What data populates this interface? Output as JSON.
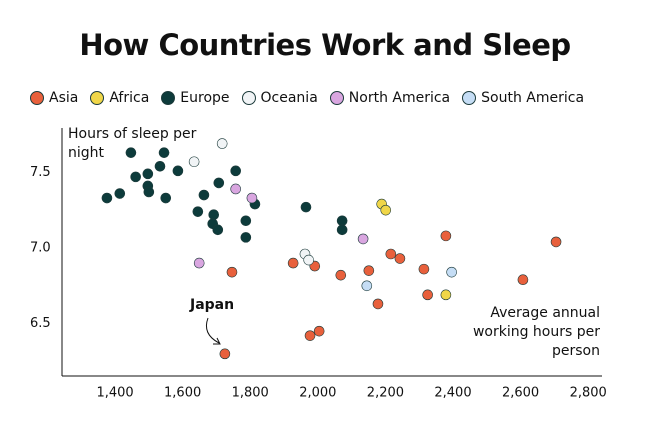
{
  "chart_data": {
    "type": "scatter",
    "title": "How Countries Work and Sleep",
    "y_label": "Hours of sleep per night",
    "x_label": "Average annual working hours per person",
    "annotation": "Japan",
    "xlim": [
      1243,
      2835
    ],
    "ylim": [
      6.16,
      7.78
    ],
    "xticks": [
      {
        "value": 1400,
        "label": "1,400"
      },
      {
        "value": 1600,
        "label": "1,600"
      },
      {
        "value": 1800,
        "label": "1,800"
      },
      {
        "value": 2000,
        "label": "2,000"
      },
      {
        "value": 2200,
        "label": "2,200"
      },
      {
        "value": 2400,
        "label": "2,400"
      },
      {
        "value": 2600,
        "label": "2,600"
      },
      {
        "value": 2800,
        "label": "2,800"
      }
    ],
    "yticks": [
      6.5,
      {
        "value": 7,
        "label": "7.0"
      },
      7.5
    ],
    "grid": false,
    "series": [
      {
        "name": "Asia",
        "color": "#e8603c",
        "x": [
          1746,
          1725,
          1927,
          1991,
          2068,
          2151,
          2216,
          2243,
          2314,
          2325,
          2379,
          2178,
          2004,
          1977,
          2607,
          2705
        ],
        "values": [
          6.84,
          6.3,
          6.9,
          6.88,
          6.82,
          6.85,
          6.96,
          6.93,
          6.86,
          6.69,
          7.08,
          6.63,
          6.45,
          6.42,
          6.79,
          7.04
        ]
      },
      {
        "name": "Africa",
        "color": "#f0d648",
        "x": [
          2189,
          2201,
          2379
        ],
        "values": [
          7.29,
          7.25,
          6.69
        ]
      },
      {
        "name": "Europe",
        "color": "#0d3b3b",
        "x": [
          1447,
          1545,
          1376,
          1414,
          1461,
          1497,
          1497,
          1500,
          1533,
          1550,
          1586,
          1663,
          1707,
          1757,
          1645,
          1692,
          1689,
          1704,
          1787,
          1814,
          1787,
          1965,
          2072,
          2072
        ],
        "values": [
          7.63,
          7.63,
          7.33,
          7.36,
          7.47,
          7.49,
          7.41,
          7.37,
          7.54,
          7.33,
          7.51,
          7.35,
          7.43,
          7.51,
          7.24,
          7.22,
          7.16,
          7.12,
          7.18,
          7.29,
          7.07,
          7.27,
          7.18,
          7.12
        ]
      },
      {
        "name": "Oceania",
        "color": "#f1f4f6",
        "x": [
          1717,
          1634,
          1962,
          1973
        ],
        "values": [
          7.69,
          7.57,
          6.96,
          6.92
        ]
      },
      {
        "name": "North America",
        "color": "#d9a6e0",
        "x": [
          1757,
          1805,
          1649,
          2134
        ],
        "values": [
          7.39,
          7.33,
          6.9,
          7.06
        ]
      },
      {
        "name": "South America",
        "color": "#c5ddf5",
        "x": [
          2145,
          2396
        ],
        "values": [
          6.75,
          6.84
        ]
      }
    ]
  }
}
